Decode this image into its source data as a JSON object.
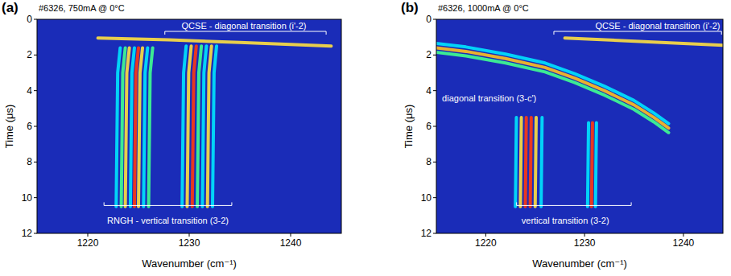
{
  "chart_data": [
    {
      "type": "line",
      "panel_label": "(a)",
      "title": "#6326, 750mA @ 0°C",
      "x_label": "Wavenumber  (cm⁻¹)",
      "y_label": "Time (μs)",
      "xlim": [
        1215,
        1245
      ],
      "xticks": [
        1220,
        1230,
        1240
      ],
      "ylim": [
        12,
        0
      ],
      "yticks": [
        0,
        2,
        4,
        6,
        8,
        10,
        12
      ],
      "annotations": [
        "QCSE - diagonal transition (i'-2)",
        "RNGH - vertical transition (3-2)"
      ],
      "series": [
        {
          "color": "#ffe040",
          "x": [
            1221,
            1228,
            1235,
            1244
          ],
          "values": [
            1.05,
            1.15,
            1.3,
            1.5
          ]
        },
        {
          "color": "#00e5ff",
          "x": [
            1223.2,
            1222.95,
            1222.8
          ],
          "values": [
            1.6,
            3.0,
            10.5
          ]
        },
        {
          "color": "#40ff90",
          "x": [
            1223.7,
            1223.45,
            1223.3
          ],
          "values": [
            1.6,
            3.0,
            10.5
          ]
        },
        {
          "color": "#ffe040",
          "x": [
            1224.1,
            1223.85,
            1223.7
          ],
          "values": [
            1.6,
            3.0,
            10.5
          ]
        },
        {
          "color": "#00e5ff",
          "x": [
            1224.6,
            1224.35,
            1224.2
          ],
          "values": [
            1.6,
            3.0,
            10.5
          ]
        },
        {
          "color": "#ff3a10",
          "x": [
            1225.0,
            1224.75,
            1224.6
          ],
          "values": [
            1.6,
            3.0,
            10.5
          ]
        },
        {
          "color": "#ffe040",
          "x": [
            1225.4,
            1225.15,
            1225.0
          ],
          "values": [
            1.6,
            3.0,
            10.5
          ]
        },
        {
          "color": "#00e5ff",
          "x": [
            1225.9,
            1225.65,
            1225.5
          ],
          "values": [
            1.6,
            3.0,
            10.5
          ]
        },
        {
          "color": "#40ff90",
          "x": [
            1226.4,
            1226.15,
            1226.0
          ],
          "values": [
            1.6,
            3.0,
            10.5
          ]
        },
        {
          "color": "#00e5ff",
          "x": [
            1229.7,
            1229.45,
            1229.3
          ],
          "values": [
            1.5,
            3.0,
            10.5
          ]
        },
        {
          "color": "#ffe040",
          "x": [
            1230.2,
            1229.95,
            1229.8
          ],
          "values": [
            1.5,
            3.0,
            10.5
          ]
        },
        {
          "color": "#ff3a10",
          "x": [
            1230.7,
            1230.45,
            1230.3
          ],
          "values": [
            1.5,
            3.0,
            10.5
          ]
        },
        {
          "color": "#40ff90",
          "x": [
            1231.2,
            1230.95,
            1230.8
          ],
          "values": [
            1.5,
            3.0,
            10.5
          ]
        },
        {
          "color": "#00e5ff",
          "x": [
            1231.7,
            1231.45,
            1231.3
          ],
          "values": [
            1.5,
            3.0,
            10.5
          ]
        },
        {
          "color": "#ffe040",
          "x": [
            1232.2,
            1231.95,
            1231.8
          ],
          "values": [
            1.5,
            3.0,
            10.5
          ]
        },
        {
          "color": "#00e5ff",
          "x": [
            1232.7,
            1232.45,
            1232.3
          ],
          "values": [
            1.5,
            3.0,
            10.5
          ]
        }
      ]
    },
    {
      "type": "line",
      "panel_label": "(b)",
      "title": "#6326, 1000mA @ 0°C",
      "x_label": "Wavenumber  (cm⁻¹)",
      "y_label": "Time (μs)",
      "xlim": [
        1215,
        1244
      ],
      "xticks": [
        1220,
        1230,
        1240
      ],
      "ylim": [
        12,
        0
      ],
      "yticks": [
        0,
        2,
        4,
        6,
        8,
        10,
        12
      ],
      "annotations": [
        "QCSE - diagonal transition (i'-2)",
        "diagonal transition (3-c')",
        "vertical transition (3-2)"
      ],
      "series": [
        {
          "color": "#ffe040",
          "x": [
            1228,
            1236,
            1244
          ],
          "values": [
            1.05,
            1.25,
            1.45
          ]
        },
        {
          "color": "#00e5ff",
          "x": [
            1215,
            1218,
            1222,
            1226,
            1229,
            1232,
            1235,
            1237,
            1238.5
          ],
          "values": [
            1.35,
            1.55,
            1.95,
            2.45,
            3.05,
            3.75,
            4.55,
            5.25,
            5.85
          ]
        },
        {
          "color": "#ffc020",
          "x": [
            1215,
            1218,
            1222,
            1226,
            1229,
            1232,
            1235,
            1237,
            1238.5
          ],
          "values": [
            1.6,
            1.8,
            2.2,
            2.7,
            3.3,
            4.0,
            4.8,
            5.5,
            6.1
          ]
        },
        {
          "color": "#40ff90",
          "x": [
            1215,
            1218,
            1222,
            1226,
            1229,
            1232,
            1235,
            1237,
            1238.5
          ],
          "values": [
            1.85,
            2.05,
            2.45,
            2.95,
            3.55,
            4.25,
            5.05,
            5.75,
            6.35
          ]
        },
        {
          "color": "#00e5ff",
          "x": [
            1223.1,
            1223.0
          ],
          "values": [
            5.5,
            10.5
          ]
        },
        {
          "color": "#ffe040",
          "x": [
            1223.6,
            1223.5
          ],
          "values": [
            5.5,
            10.5
          ]
        },
        {
          "color": "#ff3a10",
          "x": [
            1224.1,
            1224.0
          ],
          "values": [
            5.5,
            10.5
          ]
        },
        {
          "color": "#ff3a10",
          "x": [
            1224.6,
            1224.5
          ],
          "values": [
            5.5,
            10.5
          ]
        },
        {
          "color": "#ffe040",
          "x": [
            1225.1,
            1225.0
          ],
          "values": [
            5.5,
            10.5
          ]
        },
        {
          "color": "#00e5ff",
          "x": [
            1225.7,
            1225.6
          ],
          "values": [
            5.5,
            10.5
          ]
        },
        {
          "color": "#00e5ff",
          "x": [
            1230.4,
            1230.3
          ],
          "values": [
            5.8,
            10.5
          ]
        },
        {
          "color": "#ff3a10",
          "x": [
            1230.8,
            1230.7
          ],
          "values": [
            5.8,
            10.5
          ]
        },
        {
          "color": "#00e5ff",
          "x": [
            1231.2,
            1231.1
          ],
          "values": [
            5.8,
            10.5
          ]
        }
      ]
    }
  ]
}
